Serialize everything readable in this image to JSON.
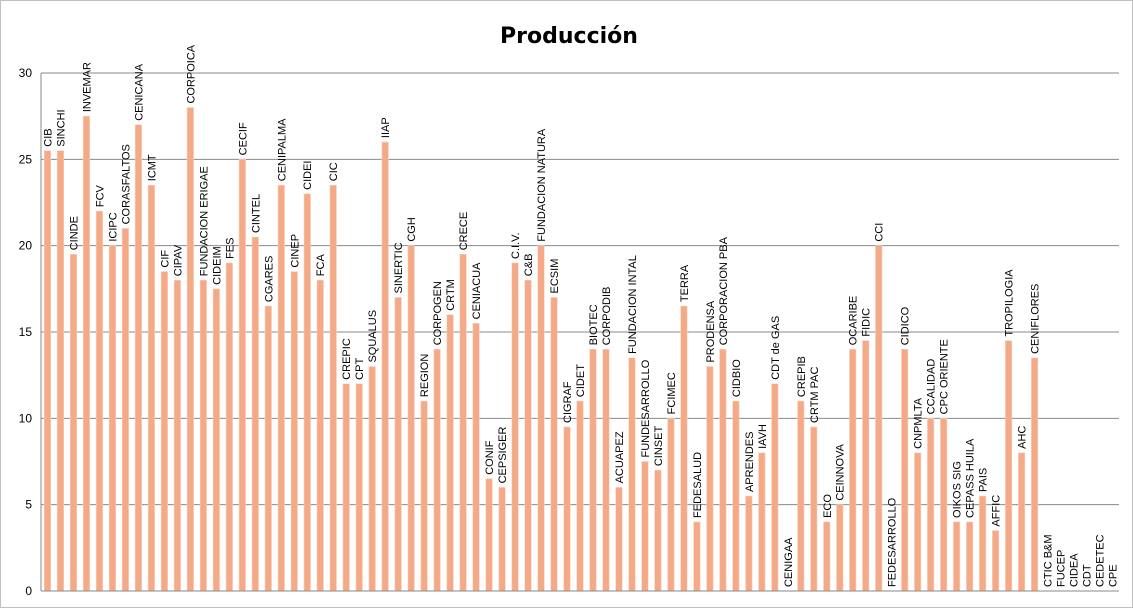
{
  "chart_data": {
    "type": "bar",
    "title": "Producción",
    "xlabel": "",
    "ylabel": "",
    "ylim": [
      0,
      30
    ],
    "yticks": [
      "0",
      "5",
      "10",
      "15",
      "20",
      "25",
      "30"
    ],
    "grid": true,
    "legend": "none",
    "bar_color": "#f4a987",
    "bar_edge_color": "#f9d2bd",
    "grid_color": "#8a8a8a",
    "categories": [
      "CIB",
      "SINCHI",
      "CINDE",
      "INVEMAR",
      "FCV",
      "ICIPC",
      "CORASFALTOS",
      "CENICANA",
      "ICMT",
      "CIF",
      "CIPAV",
      "CORPOICA",
      "FUNDACION ERIGAE",
      "CIDEIM",
      "FES",
      "CECIF",
      "CINTEL",
      "CGARES",
      "CENIPALMA",
      "CINEP",
      "CIDEI",
      "FCA",
      "CIC",
      "CREPIC",
      "CPT",
      "SQUALUS",
      "IIAP",
      "SINERTIC",
      "CGH",
      "REGION",
      "CORPOGEN",
      "CRTM",
      "CRECE",
      "CENIACUA",
      "CONIF",
      "CEPSIGER",
      "C.I.V.",
      "C&B",
      "FUNDACION NATURA",
      "ECSIM",
      "CIGRAF",
      "CIDET",
      "BIOTEC",
      "CORPODIB",
      "ACUAPEZ",
      "FUNDACION INTAL",
      "FUNDESARROLLO",
      "CINSET",
      "FCIMEC",
      "TERRA",
      "FEDESALUD",
      "PRODENSA",
      "CORPORACION PBA",
      "CIDBIO",
      "APRENDES",
      "IAVH",
      "CDT de GAS",
      "CENIGAA",
      "CREPIB",
      "CRTM PAC",
      "ECO",
      "CEINNOVA",
      "OCARIBE",
      "FIDIC",
      "CCI",
      "FEDESARROLLO",
      "CIDICO",
      "CNPMLTA",
      "CCALIDAD",
      "CPC ORIENTE",
      "OIKOS SIG",
      "CEPASS HUILA",
      "PAIS",
      "AFFIC",
      "TROPILOGIA",
      "AHC",
      "CENIFLORES",
      "CTIC B&M",
      "FUCEP",
      "CIDEA",
      "CDT",
      "CEDETEC",
      "CPE"
    ],
    "values": [
      25.5,
      25.5,
      19.5,
      27.5,
      22,
      20,
      21,
      27,
      23.5,
      18.5,
      18,
      28,
      18,
      17.5,
      19,
      25,
      20.5,
      16.5,
      23.5,
      18.5,
      23,
      18,
      23.5,
      12,
      12,
      13,
      26,
      17,
      20,
      11,
      14,
      16,
      19.5,
      15.5,
      6.5,
      6,
      19,
      18,
      20,
      17,
      9.5,
      11,
      14,
      14,
      6,
      13.5,
      7.5,
      7,
      10,
      16.5,
      4,
      13,
      14,
      11,
      5.5,
      8,
      12,
      0,
      11,
      9.5,
      4,
      5,
      14,
      14.5,
      20,
      0,
      14,
      8,
      10,
      10,
      4,
      4,
      5.5,
      3.5,
      14.5,
      8,
      13.5,
      0,
      0,
      0,
      0,
      0,
      0
    ]
  }
}
